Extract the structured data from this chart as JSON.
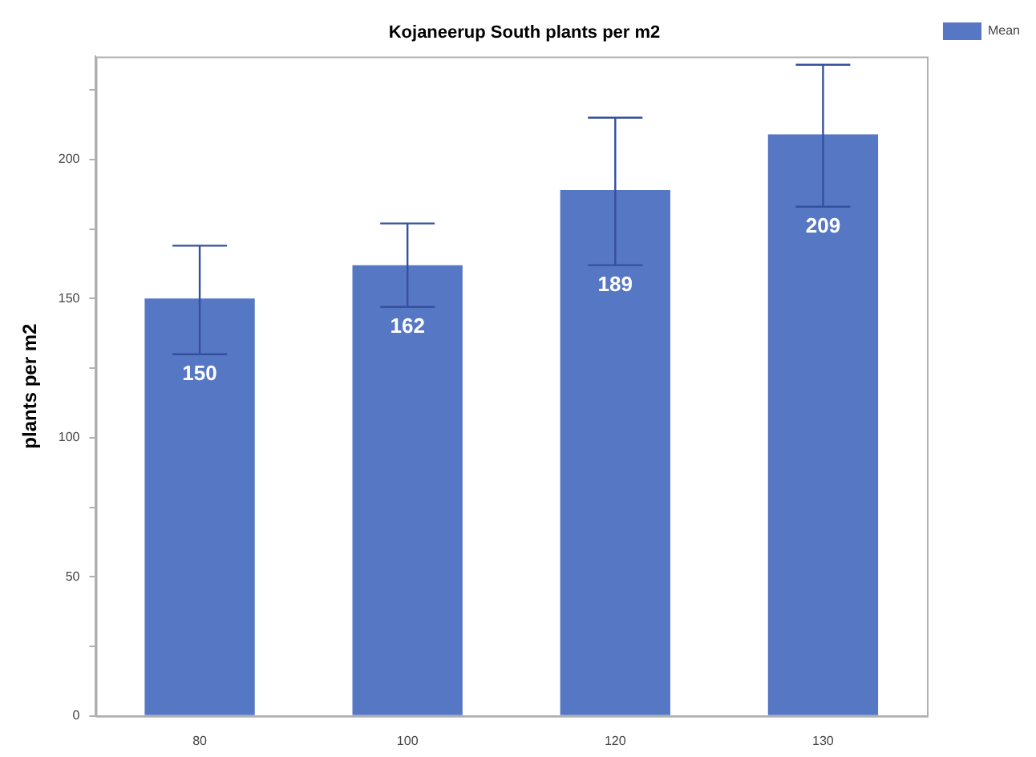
{
  "chart_data": {
    "type": "bar",
    "title": "Kojaneerup South plants per m2",
    "ylabel": "plants per m2",
    "categories": [
      "80",
      "100",
      "120",
      "130"
    ],
    "series": [
      {
        "name": "Mean",
        "color": "#5677c4",
        "values": [
          150,
          162,
          189,
          209
        ],
        "errors": [
          [
            130,
            169
          ],
          [
            147,
            177
          ],
          [
            162,
            215
          ],
          [
            183,
            234
          ]
        ]
      }
    ],
    "ylim": [
      0,
      237
    ],
    "yticks": [
      0,
      {
        "value": 25,
        "label": null
      },
      50,
      {
        "value": 75,
        "label": null
      },
      100,
      {
        "value": 125,
        "label": null
      },
      150,
      {
        "value": 175,
        "label": null
      },
      200,
      {
        "value": 225,
        "label": null
      }
    ],
    "data_labels": true,
    "legend": "top right",
    "grid": false
  }
}
